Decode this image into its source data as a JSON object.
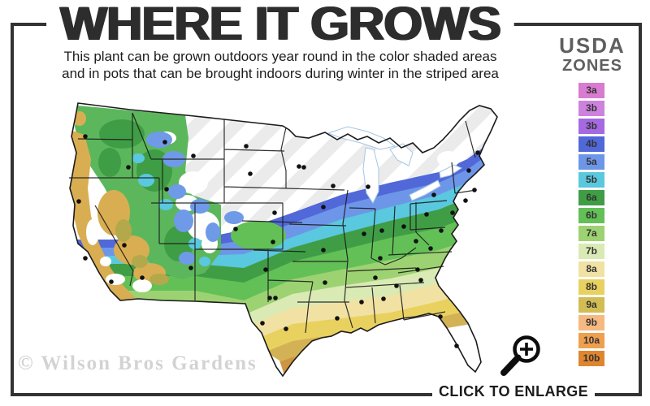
{
  "header": {
    "title": "WHERE IT GROWS",
    "subtitle_line1": "This plant can be grown outdoors year round in the color shaded areas",
    "subtitle_line2": "and in pots that can be brought indoors during winter in the striped area"
  },
  "legend": {
    "heading_top": "USDA",
    "heading_bottom": "ZONES",
    "zones": [
      {
        "label": "3a",
        "color": "#d97bd0"
      },
      {
        "label": "3b",
        "color": "#cd82dd"
      },
      {
        "label": "3b",
        "color": "#a569e2"
      },
      {
        "label": "4b",
        "color": "#5168d8"
      },
      {
        "label": "5a",
        "color": "#6e96e8"
      },
      {
        "label": "5b",
        "color": "#5ac8de"
      },
      {
        "label": "6a",
        "color": "#3f9e45"
      },
      {
        "label": "6b",
        "color": "#63c057"
      },
      {
        "label": "7a",
        "color": "#9dd272"
      },
      {
        "label": "7b",
        "color": "#daeab4"
      },
      {
        "label": "8a",
        "color": "#f1e2a3"
      },
      {
        "label": "8b",
        "color": "#e9d160"
      },
      {
        "label": "9a",
        "color": "#d2bd55"
      },
      {
        "label": "9b",
        "color": "#f5b981"
      },
      {
        "label": "10a",
        "color": "#efa04f"
      },
      {
        "label": "10b",
        "color": "#e0852f"
      }
    ]
  },
  "footer": {
    "watermark": "© Wilson Bros Gardens",
    "cta_label": "CLICK TO ENLARGE"
  },
  "colors": {
    "frame": "#333333",
    "title_text": "#2d2d2d",
    "legend_heading": "#5f5f5f",
    "watermark": "#d3d3d3"
  }
}
